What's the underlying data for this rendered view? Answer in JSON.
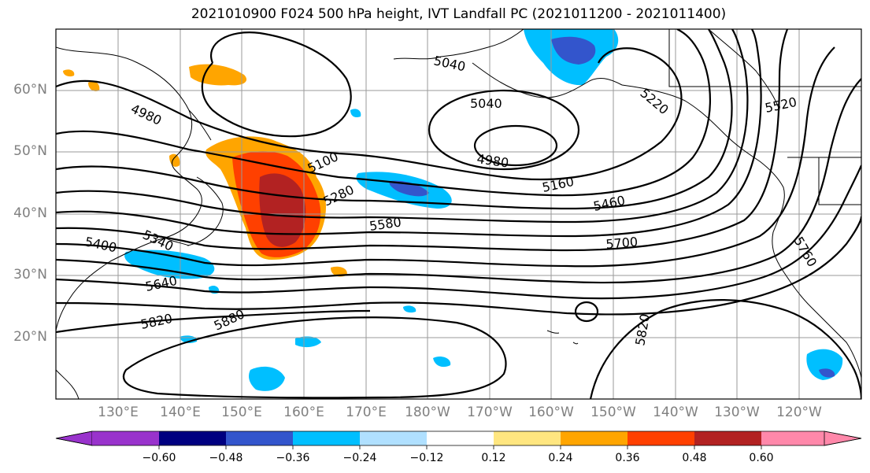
{
  "title": "2021010900 F024 500 hPa height, IVT Landfall PC (2021011200 - 2021011400)",
  "lat_labels": [
    "60°N",
    "50°N",
    "40°N",
    "30°N",
    "20°N"
  ],
  "lon_labels": [
    "130°E",
    "140°E",
    "150°E",
    "160°E",
    "170°E",
    "180°W",
    "170°W",
    "160°W",
    "150°W",
    "140°W",
    "130°W",
    "120°W"
  ],
  "contour_labels": [
    "5040",
    "5040",
    "4980",
    "4980",
    "5100",
    "5160",
    "5220",
    "5280",
    "5340",
    "5400",
    "5460",
    "5520",
    "5580",
    "5640",
    "5700",
    "5760",
    "5820",
    "5820",
    "5880"
  ],
  "colorbar": {
    "ticks": [
      "−0.60",
      "−0.48",
      "−0.36",
      "−0.24",
      "−0.12",
      "0.12",
      "0.24",
      "0.36",
      "0.48",
      "0.60"
    ],
    "colors": [
      "#9933cc",
      "#000080",
      "#3355cc",
      "#00bfff",
      "#b0e0ff",
      "#ffffff",
      "#ffe680",
      "#ffa500",
      "#ff4000",
      "#b22222",
      "#ff88aa"
    ]
  }
}
